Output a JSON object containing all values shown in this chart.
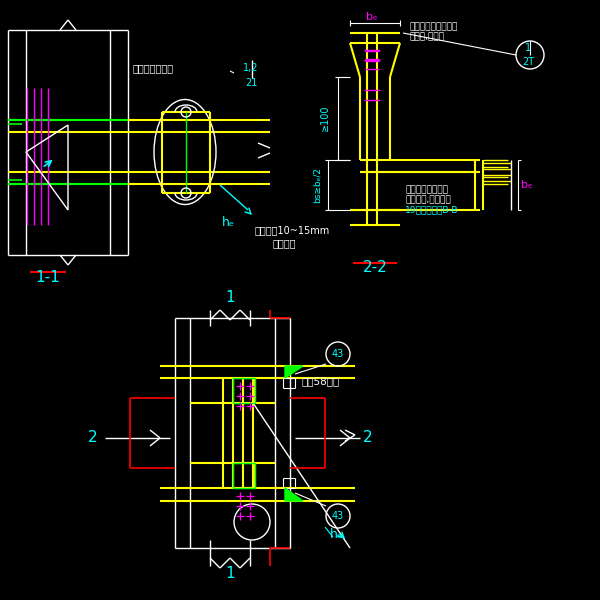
{
  "bg_color": "#000000",
  "yellow": "#FFFF00",
  "white": "#FFFFFF",
  "cyan": "#00FFFF",
  "magenta": "#FF00FF",
  "green": "#00FF00",
  "red": "#FF0000",
  "title_1_1": "1-1",
  "title_2_2": "2-2",
  "label_hf": "hₑ",
  "label_bf": "bₑ",
  "label_bs_bf2": "bs≥bₑ/2",
  "label_ge100": "≥100",
  "label_note1": "至少留出10~15mm",
  "label_note2": "以便施焺",
  "label_note3": "有两种作法详见",
  "label_note4": "当腹板采用工地焊缝",
  "label_note5": "连接时,可参见",
  "label_note6": "当腹板采用工地焊",
  "label_note7": "缝连接时,可参见第",
  "label_note8": "19页中的剔面B-B",
  "label_43": "43",
  "label_58": "按衢58选用",
  "label_1": "1",
  "label_2": "2"
}
